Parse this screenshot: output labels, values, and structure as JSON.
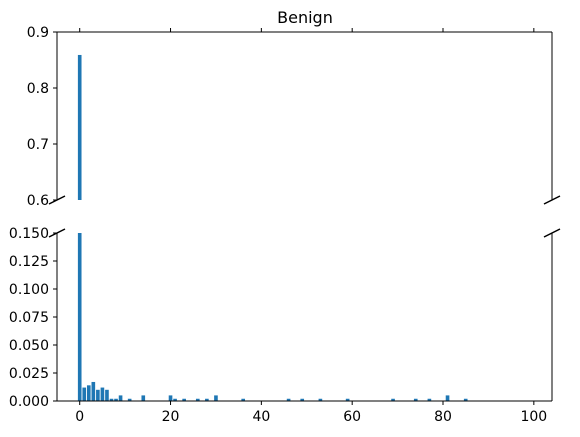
{
  "chart_data": {
    "type": "bar",
    "title": "Benign",
    "xlabel": "",
    "ylabel": "",
    "broken_y_axis": true,
    "xlim": [
      -5,
      104
    ],
    "x_ticks": [
      0,
      20,
      40,
      60,
      80,
      100
    ],
    "x_tick_labels": [
      "0",
      "20",
      "40",
      "60",
      "80",
      "100"
    ],
    "upper_panel": {
      "ylim": [
        0.6,
        0.9
      ],
      "y_ticks": [
        0.6,
        0.7,
        0.8,
        0.9
      ],
      "y_tick_labels": [
        "0.6",
        "0.7",
        "0.8",
        "0.9"
      ]
    },
    "lower_panel": {
      "ylim": [
        0.0,
        0.15
      ],
      "y_ticks": [
        0.0,
        0.025,
        0.05,
        0.075,
        0.1,
        0.125,
        0.15
      ],
      "y_tick_labels": [
        "0.000",
        "0.025",
        "0.050",
        "0.075",
        "0.100",
        "0.125",
        "0.150"
      ]
    },
    "bar_color": "#1f77b4",
    "x": [
      0,
      1,
      2,
      3,
      4,
      5,
      6,
      7,
      8,
      9,
      11,
      14,
      20,
      21,
      23,
      26,
      28,
      30,
      36,
      46,
      49,
      53,
      59,
      69,
      74,
      77,
      81,
      85
    ],
    "values": [
      0.859,
      0.012,
      0.014,
      0.017,
      0.01,
      0.012,
      0.01,
      0.002,
      0.002,
      0.005,
      0.002,
      0.005,
      0.005,
      0.002,
      0.002,
      0.002,
      0.002,
      0.005,
      0.002,
      0.002,
      0.002,
      0.002,
      0.002,
      0.002,
      0.002,
      0.002,
      0.005,
      0.002
    ]
  }
}
